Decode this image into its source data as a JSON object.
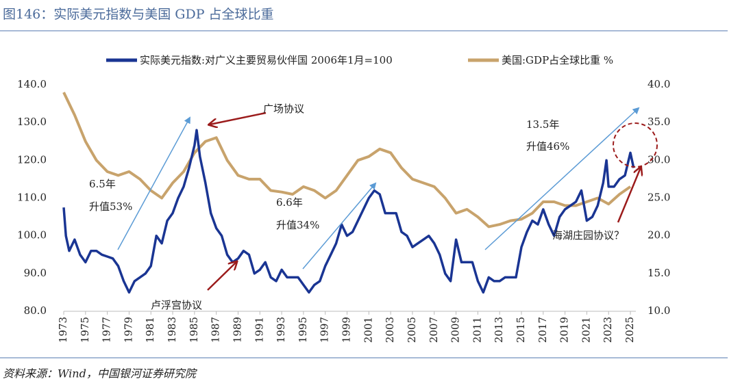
{
  "chart_data": {
    "type": "line",
    "title": "图146：实际美元指数与美国 GDP 占全球比重",
    "source": "资料来源：Wind，中国银河证券研究院",
    "series": [
      {
        "name": "实际美元指数:对广义主要贸易伙伴国 2006年1月=100",
        "color": "#1a3593",
        "axis": "y",
        "x": [
          1973.0,
          1973.2,
          1973.5,
          1974.0,
          1974.5,
          1975.0,
          1975.5,
          1976.0,
          1976.5,
          1977.0,
          1977.5,
          1978.0,
          1978.5,
          1979.0,
          1979.5,
          1980.0,
          1980.5,
          1981.0,
          1981.5,
          1982.0,
          1982.5,
          1983.0,
          1983.5,
          1984.0,
          1984.5,
          1985.0,
          1985.2,
          1985.5,
          1986.0,
          1986.5,
          1987.0,
          1987.5,
          1988.0,
          1988.5,
          1989.0,
          1989.5,
          1990.0,
          1990.5,
          1991.0,
          1991.5,
          1992.0,
          1992.5,
          1993.0,
          1993.5,
          1994.0,
          1994.5,
          1995.0,
          1995.5,
          1996.0,
          1996.5,
          1997.0,
          1997.5,
          1998.0,
          1998.5,
          1999.0,
          1999.5,
          2000.0,
          2000.5,
          2001.0,
          2001.5,
          2002.0,
          2002.5,
          2003.0,
          2003.5,
          2004.0,
          2004.5,
          2005.0,
          2005.5,
          2006.0,
          2006.5,
          2007.0,
          2007.5,
          2008.0,
          2008.5,
          2009.0,
          2009.5,
          2010.0,
          2010.5,
          2011.0,
          2011.5,
          2012.0,
          2012.5,
          2013.0,
          2013.5,
          2014.0,
          2014.5,
          2015.0,
          2015.5,
          2016.0,
          2016.5,
          2017.0,
          2017.5,
          2018.0,
          2018.5,
          2019.0,
          2019.5,
          2020.0,
          2020.5,
          2021.0,
          2021.5,
          2022.0,
          2022.5,
          2022.8,
          2023.0,
          2023.5,
          2024.0,
          2024.5,
          2025.0,
          2025.3
        ],
        "values": [
          107.5,
          100,
          96,
          99,
          95,
          93,
          96,
          96,
          95,
          94.5,
          94,
          92,
          88,
          85,
          88,
          89,
          90,
          92,
          100,
          98,
          104,
          106,
          110,
          113,
          118,
          124,
          128,
          121,
          114,
          106,
          102,
          100,
          95,
          93,
          94,
          96,
          95,
          90,
          91,
          93,
          89,
          88,
          91,
          89,
          89,
          89,
          87,
          85,
          87,
          88,
          92,
          95,
          98,
          103,
          100,
          101,
          104,
          107,
          110,
          112,
          111,
          106,
          106,
          106,
          101,
          100,
          97,
          98,
          99,
          100,
          98,
          95,
          90,
          88,
          99,
          93,
          93,
          93,
          88,
          85,
          89,
          88,
          88,
          89,
          89,
          89,
          97,
          101,
          104,
          103,
          107,
          103,
          100,
          105,
          107,
          108,
          109,
          112,
          104,
          105,
          108,
          114,
          120,
          113,
          113,
          115,
          116,
          122,
          118
        ]
      },
      {
        "name": "美国:GDP占全球比重 %",
        "color": "#c8a36c",
        "axis": "y2",
        "x": [
          1973,
          1974,
          1975,
          1976,
          1977,
          1978,
          1979,
          1980,
          1981,
          1982,
          1983,
          1984,
          1985,
          1986,
          1987,
          1988,
          1989,
          1990,
          1991,
          1992,
          1993,
          1994,
          1995,
          1996,
          1997,
          1998,
          1999,
          2000,
          2001,
          2002,
          2003,
          2004,
          2005,
          2006,
          2007,
          2008,
          2009,
          2010,
          2011,
          2012,
          2013,
          2014,
          2015,
          2016,
          2017,
          2018,
          2019,
          2020,
          2021,
          2022,
          2023,
          2024,
          2025
        ],
        "values": [
          39,
          36,
          32.5,
          30,
          28.5,
          28,
          28.5,
          27.5,
          26,
          25,
          27,
          28.5,
          31,
          32.5,
          33,
          30,
          28,
          27.5,
          27.5,
          26,
          25.8,
          25.5,
          26.5,
          26,
          25,
          26,
          28,
          30,
          30.5,
          31.5,
          31,
          29,
          27.5,
          27,
          26.5,
          25,
          23,
          23.5,
          22.5,
          21.2,
          21.5,
          22,
          22.2,
          23,
          24.5,
          24.5,
          24,
          24,
          24.5,
          25,
          24.2,
          25.5,
          26.5
        ]
      }
    ],
    "xlim": [
      1973,
      2025.5
    ],
    "xticks": [
      1973,
      1975,
      1977,
      1979,
      1981,
      1983,
      1985,
      1987,
      1989,
      1991,
      1993,
      1995,
      1997,
      1999,
      2001,
      2003,
      2005,
      2007,
      2009,
      2011,
      2013,
      2015,
      2017,
      2019,
      2021,
      2023,
      2025
    ],
    "ylim": [
      80,
      140
    ],
    "yticks": [
      {
        "value": 80,
        "label": "80.0"
      },
      {
        "value": 90,
        "label": "90.0"
      },
      {
        "value": 100,
        "label": "100.0"
      },
      {
        "value": 110,
        "label": "110.0"
      },
      {
        "value": 120,
        "label": "120.0"
      },
      {
        "value": 130,
        "label": "130.0"
      },
      {
        "value": 140,
        "label": "140.0"
      }
    ],
    "y2lim": [
      10,
      40
    ],
    "y2ticks": [
      {
        "value": 10,
        "label": "10.0"
      },
      {
        "value": 15,
        "label": "15.0"
      },
      {
        "value": 20,
        "label": "20.0"
      },
      {
        "value": 25,
        "label": "25.0"
      },
      {
        "value": 30,
        "label": "30.0"
      },
      {
        "value": 35,
        "label": "35.0"
      },
      {
        "value": 40,
        "label": "40.0"
      }
    ],
    "annotations": [
      "6.5年",
      "升值53%",
      "6.6年",
      "升值34%",
      "13.5年",
      "升值46%",
      "广场协议",
      "卢浮宫协议",
      "海湖庄园协议？"
    ]
  }
}
